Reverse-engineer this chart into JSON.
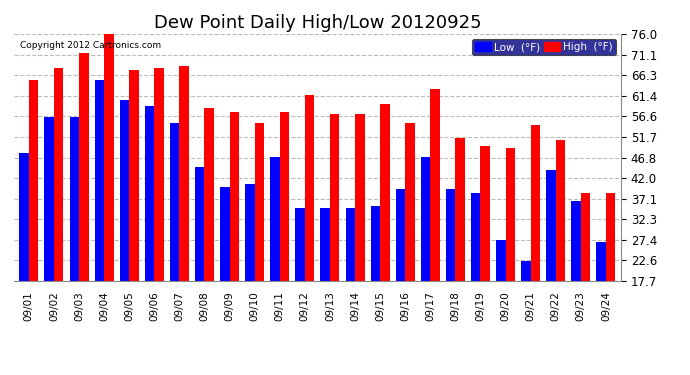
{
  "title": "Dew Point Daily High/Low 20120925",
  "copyright": "Copyright 2012 Cartronics.com",
  "dates": [
    "09/01",
    "09/02",
    "09/03",
    "09/04",
    "09/05",
    "09/06",
    "09/07",
    "09/08",
    "09/09",
    "09/10",
    "09/11",
    "09/12",
    "09/13",
    "09/14",
    "09/15",
    "09/16",
    "09/17",
    "09/18",
    "09/19",
    "09/20",
    "09/21",
    "09/22",
    "09/23",
    "09/24"
  ],
  "high_values": [
    65.0,
    68.0,
    71.5,
    76.0,
    67.5,
    68.0,
    68.5,
    58.5,
    57.5,
    55.0,
    57.5,
    61.5,
    57.0,
    57.0,
    59.5,
    55.0,
    63.0,
    51.5,
    49.5,
    49.0,
    54.5,
    51.0,
    38.5,
    38.5
  ],
  "low_values": [
    48.0,
    56.5,
    56.5,
    65.0,
    60.5,
    59.0,
    55.0,
    44.5,
    40.0,
    40.5,
    47.0,
    35.0,
    35.0,
    35.0,
    35.5,
    39.5,
    47.0,
    39.5,
    38.5,
    27.5,
    22.5,
    44.0,
    36.5,
    27.0
  ],
  "high_color": "#ff0000",
  "low_color": "#0000ff",
  "bg_color": "#ffffff",
  "plot_bg_color": "#ffffff",
  "grid_color": "#bbbbbb",
  "yticks": [
    17.7,
    22.6,
    27.4,
    32.3,
    37.1,
    42.0,
    46.8,
    51.7,
    56.6,
    61.4,
    66.3,
    71.1,
    76.0
  ],
  "ymin": 17.7,
  "ymax": 76.0,
  "title_fontsize": 13,
  "legend_label_low": "Low  (°F)",
  "legend_label_high": "High  (°F)"
}
